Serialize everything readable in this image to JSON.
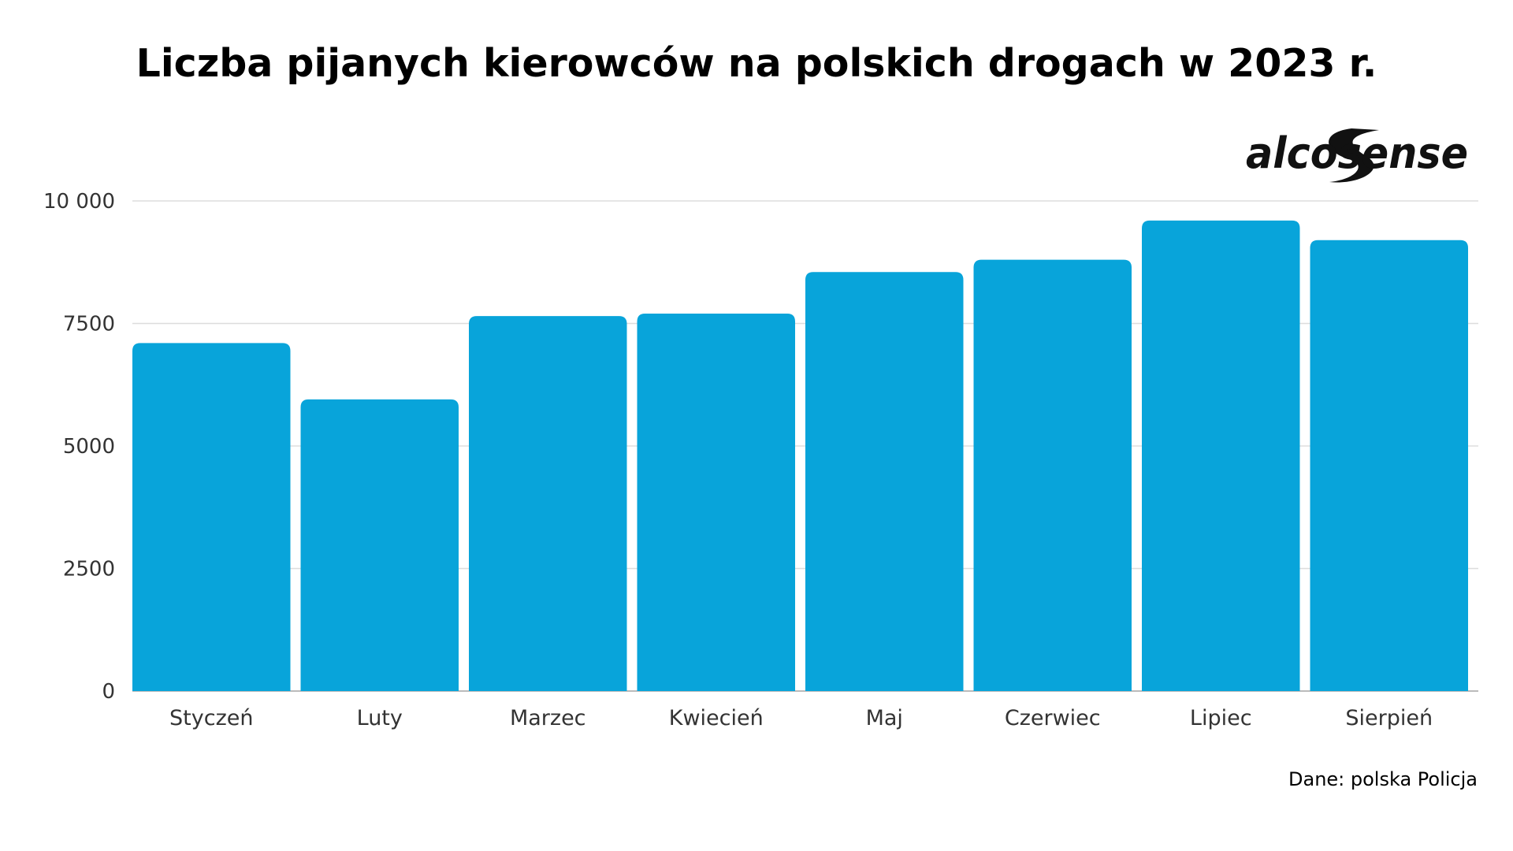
{
  "header": {
    "title": "Liczba pijanych kierowców na polskich drogach w 2023 r."
  },
  "brand": {
    "logo_text": "alcosense"
  },
  "footer": {
    "source": "Dane: polska Policja"
  },
  "colors": {
    "bar": "#08a4da",
    "grid": "#dddddd",
    "axis": "#bbbbbb",
    "text": "#000000",
    "tick_text": "#333333"
  },
  "chart_data": {
    "type": "bar",
    "title": "Liczba pijanych kierowców na polskich drogach w 2023 r.",
    "xlabel": "",
    "ylabel": "",
    "categories": [
      "Styczeń",
      "Luty",
      "Marzec",
      "Kwiecień",
      "Maj",
      "Czerwiec",
      "Lipiec",
      "Sierpień"
    ],
    "values": [
      7100,
      5950,
      7650,
      7700,
      8550,
      8800,
      9600,
      9200
    ],
    "ylim": [
      0,
      10000
    ],
    "yticks": [
      0,
      2500,
      5000,
      7500,
      10000
    ],
    "ytick_labels": [
      "0",
      "2500",
      "5000",
      "7500",
      "10 000"
    ],
    "grid": true,
    "legend": "none"
  }
}
